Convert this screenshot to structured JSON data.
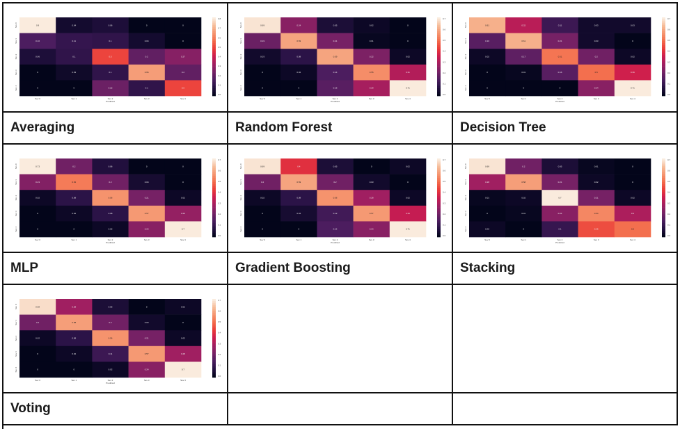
{
  "panel_labels": [
    "Averaging",
    "Random Forest",
    "Decision Tree",
    "MLP",
    "Gradient Boosting",
    "Stacking",
    "Voting"
  ],
  "chart_data": [
    {
      "type": "heatmap",
      "model": "Averaging",
      "xlabel": "Predicted",
      "xticks": [
        "Sev 0",
        "Sev 1",
        "Sev 2",
        "Sev 3",
        "Sev 4"
      ],
      "yticks": [
        "Sev 0",
        "Sev 1",
        "Sev 2",
        "Sev 3",
        "Sev 4"
      ],
      "values": [
        [
          0.9,
          0.04,
          0.06,
          0,
          0
        ],
        [
          0.16,
          0.11,
          0.1,
          0.04,
          0
        ],
        [
          0.06,
          0.1,
          0.5,
          0.2,
          0.27
        ],
        [
          0,
          0.03,
          0.1,
          0.66,
          0.2
        ],
        [
          0,
          0,
          0.22,
          0.1,
          0.5
        ]
      ],
      "colorbar_ticks": [
        "0.8",
        "0.7",
        "0.6",
        "0.5",
        "0.4",
        "0.3",
        "0.2",
        "0.1",
        "0.0"
      ],
      "vmax": 0.8
    },
    {
      "type": "heatmap",
      "model": "Random Forest",
      "xlabel": "Predicted",
      "xticks": [
        "Sev 0",
        "Sev 1",
        "Sev 2",
        "Sev 3",
        "Sev 4"
      ],
      "yticks": [
        "Sev 0",
        "Sev 1",
        "Sev 2",
        "Sev 3",
        "Sev 4"
      ],
      "values": [
        [
          0.69,
          0.24,
          0.05,
          0.02,
          0
        ],
        [
          0.19,
          0.59,
          0.21,
          0.01,
          0
        ],
        [
          0.03,
          0.08,
          0.59,
          0.22,
          0.02
        ],
        [
          0,
          0.02,
          0.14,
          0.55,
          0.31
        ],
        [
          0,
          0,
          0.16,
          0.29,
          0.71
        ]
      ],
      "colorbar_ticks": [
        "0.7",
        "0.6",
        "0.5",
        "0.4",
        "0.3",
        "0.2",
        "0.1",
        "0.0"
      ],
      "vmax": 0.7
    },
    {
      "type": "heatmap",
      "model": "Decision Tree",
      "xlabel": "Predicted",
      "xticks": [
        "Sev 0",
        "Sev 1",
        "Sev 2",
        "Sev 3",
        "Sev 4"
      ],
      "yticks": [
        "Sev 0",
        "Sev 1",
        "Sev 2",
        "Sev 3",
        "Sev 4"
      ],
      "values": [
        [
          0.61,
          0.32,
          0.11,
          0.03,
          0.03
        ],
        [
          0.16,
          0.61,
          0.21,
          0.03,
          0
        ],
        [
          0.02,
          0.17,
          0.51,
          0.2,
          0.02
        ],
        [
          0,
          0.01,
          0.16,
          0.5,
          0.36
        ],
        [
          0,
          0,
          0,
          0.24,
          0.71
        ]
      ],
      "colorbar_ticks": [
        "0.7",
        "0.6",
        "0.5",
        "0.4",
        "0.3",
        "0.2",
        "0.1",
        "0.0"
      ],
      "vmax": 0.7
    },
    {
      "type": "heatmap",
      "model": "MLP",
      "xlabel": "Predicted",
      "xticks": [
        "Sev 0",
        "Sev 1",
        "Sev 2",
        "Sev 3",
        "Sev 4"
      ],
      "yticks": [
        "Sev 0",
        "Sev 1",
        "Sev 2",
        "Sev 3",
        "Sev 4"
      ],
      "values": [
        [
          0.73,
          0.2,
          0.06,
          0,
          0
        ],
        [
          0.23,
          0.52,
          0.2,
          0.04,
          0
        ],
        [
          0.02,
          0.08,
          0.56,
          0.21,
          0.02
        ],
        [
          0,
          0.02,
          0.08,
          0.57,
          0.26
        ],
        [
          0,
          0,
          0.02,
          0.24,
          0.7
        ]
      ],
      "colorbar_ticks": [
        "0.7",
        "0.6",
        "0.5",
        "0.4",
        "0.3",
        "0.2",
        "0.1",
        "0.0"
      ],
      "vmax": 0.7
    },
    {
      "type": "heatmap",
      "model": "Gradient Boosting",
      "xlabel": "Predicted",
      "xticks": [
        "Sev 0",
        "Sev 1",
        "Sev 2",
        "Sev 3",
        "Sev 4"
      ],
      "yticks": [
        "Sev 0",
        "Sev 1",
        "Sev 2",
        "Sev 3",
        "Sev 4"
      ],
      "values": [
        [
          0.69,
          0.4,
          0.05,
          0,
          0.02
        ],
        [
          0.2,
          0.59,
          0.2,
          0.03,
          0
        ],
        [
          0.02,
          0.08,
          0.56,
          0.28,
          0.02
        ],
        [
          0,
          0.04,
          0.12,
          0.57,
          0.34
        ],
        [
          0,
          0,
          0.14,
          0.24,
          0.71
        ]
      ],
      "colorbar_ticks": [
        "0.7",
        "0.6",
        "0.5",
        "0.4",
        "0.3",
        "0.2",
        "0.1",
        "0.0"
      ],
      "vmax": 0.7
    },
    {
      "type": "heatmap",
      "model": "Stacking",
      "xlabel": "Predicted",
      "xticks": [
        "Sev 0",
        "Sev 1",
        "Sev 2",
        "Sev 3",
        "Sev 4"
      ],
      "yticks": [
        "Sev 0",
        "Sev 1",
        "Sev 2",
        "Sev 3",
        "Sev 4"
      ],
      "values": [
        [
          0.69,
          0.2,
          0.05,
          0.01,
          0
        ],
        [
          0.28,
          0.58,
          0.21,
          0.02,
          0
        ],
        [
          0.01,
          0.02,
          0.7,
          0.21,
          0.02
        ],
        [
          0,
          0.01,
          0.24,
          0.54,
          0.3
        ],
        [
          0.02,
          0,
          0.1,
          0.45,
          0.5
        ]
      ],
      "colorbar_ticks": [
        "0.7",
        "0.6",
        "0.5",
        "0.4",
        "0.3",
        "0.2",
        "0.1",
        "0.0"
      ],
      "vmax": 0.7
    },
    {
      "type": "heatmap",
      "model": "Voting",
      "xlabel": "Predicted",
      "xticks": [
        "Sev 0",
        "Sev 1",
        "Sev 2",
        "Sev 3",
        "Sev 4"
      ],
      "yticks": [
        "Sev 0",
        "Sev 1",
        "Sev 2",
        "Sev 3",
        "Sev 4"
      ],
      "values": [
        [
          0.68,
          0.28,
          0.05,
          0,
          0.02
        ],
        [
          0.2,
          0.58,
          0.2,
          0.03,
          0
        ],
        [
          0.02,
          0.08,
          0.56,
          0.21,
          0.02
        ],
        [
          0,
          0.02,
          0.11,
          0.57,
          0.28
        ],
        [
          0,
          0,
          0.02,
          0.24,
          0.7
        ]
      ],
      "colorbar_ticks": [
        "0.7",
        "0.6",
        "0.5",
        "0.4",
        "0.3",
        "0.2",
        "0.1",
        "0.0"
      ],
      "vmax": 0.7
    }
  ]
}
